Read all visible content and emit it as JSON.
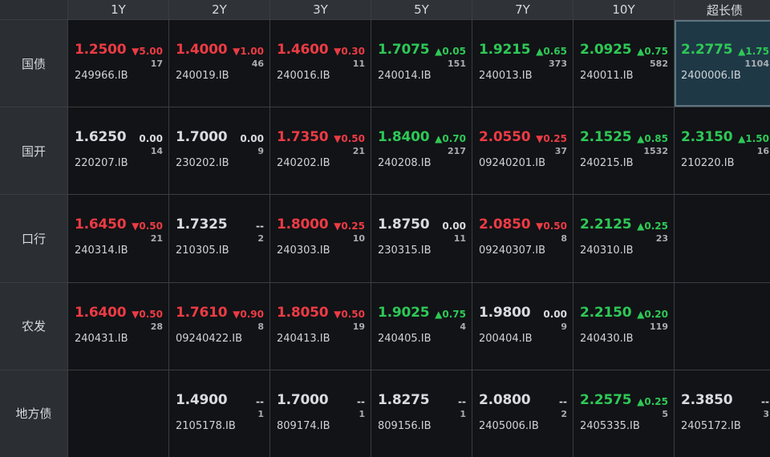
{
  "columns": [
    "1Y",
    "2Y",
    "3Y",
    "5Y",
    "7Y",
    "10Y",
    "超长债"
  ],
  "rows": [
    {
      "label": "国债",
      "cells": [
        {
          "yield": "1.2500",
          "change": "▼5.00",
          "dir": "down",
          "count": "17",
          "code": "249966.IB"
        },
        {
          "yield": "1.4000",
          "change": "▼1.00",
          "dir": "down",
          "count": "46",
          "code": "240019.IB"
        },
        {
          "yield": "1.4600",
          "change": "▼0.30",
          "dir": "down",
          "count": "11",
          "code": "240016.IB"
        },
        {
          "yield": "1.7075",
          "change": "▲0.05",
          "dir": "up",
          "count": "151",
          "code": "240014.IB"
        },
        {
          "yield": "1.9215",
          "change": "▲0.65",
          "dir": "up",
          "count": "373",
          "code": "240013.IB"
        },
        {
          "yield": "2.0925",
          "change": "▲0.75",
          "dir": "up",
          "count": "582",
          "code": "240011.IB"
        },
        {
          "yield": "2.2775",
          "change": "▲1.75",
          "dir": "up",
          "count": "1104",
          "code": "2400006.IB",
          "highlight": true
        }
      ]
    },
    {
      "label": "国开",
      "cells": [
        {
          "yield": "1.6250",
          "change": "0.00",
          "dir": "flat",
          "count": "14",
          "code": "220207.IB"
        },
        {
          "yield": "1.7000",
          "change": "0.00",
          "dir": "flat",
          "count": "9",
          "code": "230202.IB"
        },
        {
          "yield": "1.7350",
          "change": "▼0.50",
          "dir": "down",
          "count": "21",
          "code": "240202.IB"
        },
        {
          "yield": "1.8400",
          "change": "▲0.70",
          "dir": "up",
          "count": "217",
          "code": "240208.IB"
        },
        {
          "yield": "2.0550",
          "change": "▼0.25",
          "dir": "down",
          "count": "37",
          "code": "09240201.IB"
        },
        {
          "yield": "2.1525",
          "change": "▲0.85",
          "dir": "up",
          "count": "1532",
          "code": "240215.IB"
        },
        {
          "yield": "2.3150",
          "change": "▲1.50",
          "dir": "up",
          "count": "16",
          "code": "210220.IB"
        }
      ]
    },
    {
      "label": "口行",
      "cells": [
        {
          "yield": "1.6450",
          "change": "▼0.50",
          "dir": "down",
          "count": "21",
          "code": "240314.IB"
        },
        {
          "yield": "1.7325",
          "change": "--",
          "dir": "flat",
          "count": "2",
          "code": "210305.IB"
        },
        {
          "yield": "1.8000",
          "change": "▼0.25",
          "dir": "down",
          "count": "10",
          "code": "240303.IB"
        },
        {
          "yield": "1.8750",
          "change": "0.00",
          "dir": "flat",
          "count": "11",
          "code": "230315.IB"
        },
        {
          "yield": "2.0850",
          "change": "▼0.50",
          "dir": "down",
          "count": "8",
          "code": "09240307.IB"
        },
        {
          "yield": "2.2125",
          "change": "▲0.25",
          "dir": "up",
          "count": "23",
          "code": "240310.IB"
        },
        null
      ]
    },
    {
      "label": "农发",
      "cells": [
        {
          "yield": "1.6400",
          "change": "▼0.50",
          "dir": "down",
          "count": "28",
          "code": "240431.IB"
        },
        {
          "yield": "1.7610",
          "change": "▼0.90",
          "dir": "down",
          "count": "8",
          "code": "09240422.IB"
        },
        {
          "yield": "1.8050",
          "change": "▼0.50",
          "dir": "down",
          "count": "19",
          "code": "240413.IB"
        },
        {
          "yield": "1.9025",
          "change": "▲0.75",
          "dir": "up",
          "count": "4",
          "code": "240405.IB"
        },
        {
          "yield": "1.9800",
          "change": "0.00",
          "dir": "flat",
          "count": "9",
          "code": "200404.IB"
        },
        {
          "yield": "2.2150",
          "change": "▲0.20",
          "dir": "up",
          "count": "119",
          "code": "240430.IB"
        },
        null
      ]
    },
    {
      "label": "地方债",
      "cells": [
        null,
        {
          "yield": "1.4900",
          "change": "--",
          "dir": "flat",
          "count": "1",
          "code": "2105178.IB"
        },
        {
          "yield": "1.7000",
          "change": "--",
          "dir": "flat",
          "count": "1",
          "code": "809174.IB"
        },
        {
          "yield": "1.8275",
          "change": "--",
          "dir": "flat",
          "count": "1",
          "code": "809156.IB"
        },
        {
          "yield": "2.0800",
          "change": "--",
          "dir": "flat",
          "count": "2",
          "code": "2405006.IB"
        },
        {
          "yield": "2.2575",
          "change": "▲0.25",
          "dir": "up",
          "count": "5",
          "code": "2405335.IB"
        },
        {
          "yield": "2.3850",
          "change": "--",
          "dir": "flat",
          "count": "3",
          "code": "2405172.IB"
        }
      ]
    }
  ],
  "colors": {
    "up": "#2ec856",
    "down": "#ec3b44",
    "flat": "#d8dbdf",
    "highlight_bg": "#1e3846"
  }
}
